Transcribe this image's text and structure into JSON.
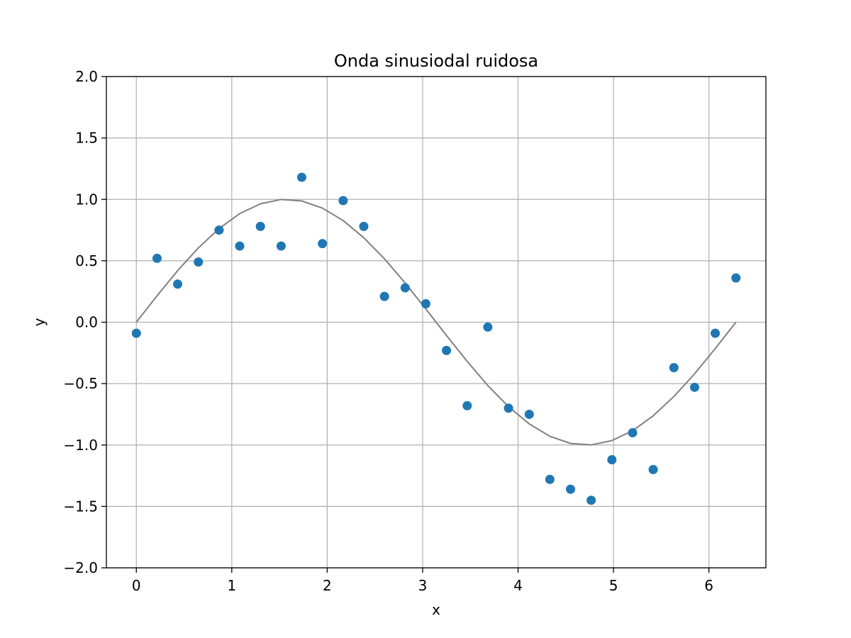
{
  "chart_data": {
    "type": "scatter",
    "title": "Onda sinusiodal ruidosa",
    "xlabel": "x",
    "ylabel": "y",
    "xlim": [
      -0.314,
      6.597
    ],
    "ylim": [
      -2.0,
      2.0
    ],
    "grid": true,
    "x_ticks": [
      0,
      1,
      2,
      3,
      4,
      5,
      6
    ],
    "x_tick_labels": [
      "0",
      "1",
      "2",
      "3",
      "4",
      "5",
      "6"
    ],
    "y_ticks": [
      -2.0,
      -1.5,
      -1.0,
      -0.5,
      0.0,
      0.5,
      1.0,
      1.5,
      2.0
    ],
    "y_tick_labels": [
      "−2.0",
      "−1.5",
      "−1.0",
      "−0.5",
      "0.0",
      "0.5",
      "1.0",
      "1.5",
      "2.0"
    ],
    "series": [
      {
        "kind": "line",
        "color": "#808080",
        "x": [
          0.0,
          0.217,
          0.433,
          0.65,
          0.867,
          1.083,
          1.3,
          1.517,
          1.733,
          1.95,
          2.167,
          2.383,
          2.6,
          2.817,
          3.033,
          3.25,
          3.467,
          3.683,
          3.9,
          4.117,
          4.333,
          4.55,
          4.766,
          4.983,
          5.2,
          5.416,
          5.633,
          5.85,
          6.066,
          6.283
        ],
        "y": [
          0.0,
          0.215,
          0.42,
          0.605,
          0.762,
          0.884,
          0.964,
          0.999,
          0.987,
          0.929,
          0.828,
          0.688,
          0.516,
          0.319,
          0.108,
          -0.108,
          -0.319,
          -0.516,
          -0.688,
          -0.828,
          -0.929,
          -0.987,
          -0.999,
          -0.964,
          -0.884,
          -0.762,
          -0.605,
          -0.42,
          -0.215,
          0.0
        ]
      },
      {
        "kind": "scatter",
        "color": "#1f77b4",
        "x": [
          0.0,
          0.217,
          0.433,
          0.65,
          0.867,
          1.083,
          1.3,
          1.517,
          1.733,
          1.95,
          2.167,
          2.383,
          2.6,
          2.817,
          3.033,
          3.25,
          3.467,
          3.683,
          3.9,
          4.117,
          4.333,
          4.55,
          4.766,
          4.983,
          5.2,
          5.416,
          5.633,
          5.85,
          6.066,
          6.283
        ],
        "y": [
          -0.09,
          0.52,
          0.31,
          0.49,
          0.75,
          0.62,
          0.78,
          0.62,
          1.18,
          0.64,
          0.99,
          0.78,
          0.21,
          0.28,
          0.15,
          -0.23,
          -0.68,
          -0.04,
          -0.7,
          -0.75,
          -1.28,
          -1.36,
          -1.45,
          -1.12,
          -0.9,
          -1.2,
          -0.37,
          -0.53,
          -0.09,
          0.36
        ]
      }
    ]
  }
}
